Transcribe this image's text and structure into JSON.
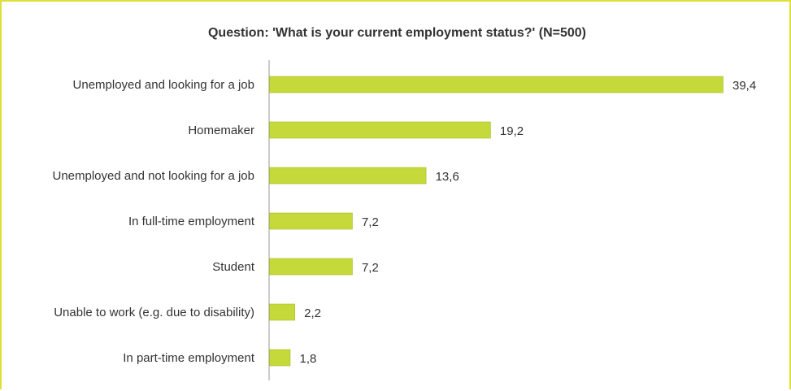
{
  "chart_data": {
    "type": "bar",
    "orientation": "horizontal",
    "title": "Question: 'What is your current employment status?' (N=500)",
    "categories": [
      "Unemployed and looking for a job",
      "Homemaker",
      "Unemployed and not looking for a job",
      "In full-time employment",
      "Student",
      "Unable to work (e.g. due to disability)",
      "In part-time employment"
    ],
    "values": [
      39.4,
      19.2,
      13.6,
      7.2,
      7.2,
      2.2,
      1.8
    ],
    "value_labels": [
      "39,4",
      "19,2",
      "13,6",
      "7,2",
      "7,2",
      "2,2",
      "1,8"
    ],
    "xlim": [
      0,
      39.4
    ],
    "grid": false,
    "legend": "none",
    "colors": {
      "bar": "#c5d93a",
      "bar_edge": "#a9bd23",
      "axis": "#9a9a9a",
      "frame": "#dde03a"
    }
  }
}
